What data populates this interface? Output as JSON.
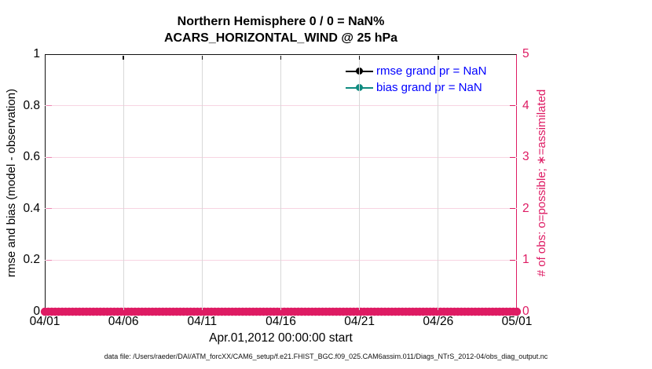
{
  "figure": {
    "background": "#ffffff",
    "footer_text": "data file: /Users/raeder/DAI/ATM_forcXX/CAM6_setup/f.e21.FHIST_BGC.f09_025.CAM6assim.011/Diags_NTrS_2012-04/obs_diag_output.nc"
  },
  "chart_data": {
    "type": "line",
    "title": "Northern Hemisphere 0 / 0 = NaN%",
    "subtitle": "ACARS_HORIZONTAL_WIND @ 25 hPa",
    "xlabel": "Apr.01,2012 00:00:00 start",
    "x_ticks": [
      "04/01",
      "04/06",
      "04/11",
      "04/16",
      "04/21",
      "04/26",
      "05/01"
    ],
    "left_axis": {
      "label": "rmse and bias (model - observation)",
      "ticks": [
        0,
        0.2,
        0.4,
        0.6,
        0.8,
        1
      ],
      "tick_labels": [
        "0",
        "0.2",
        "0.4",
        "0.6",
        "0.8",
        "1"
      ],
      "range": [
        0,
        1
      ],
      "color": "#000000"
    },
    "right_axis": {
      "label": "# of obs: o=possible; ∗=assimilated",
      "ticks": [
        0,
        1,
        2,
        3,
        4,
        5
      ],
      "tick_labels": [
        "0",
        "1",
        "2",
        "3",
        "4",
        "5"
      ],
      "range": [
        0,
        5
      ],
      "color": "#de1b63"
    },
    "series": [
      {
        "name": "rmse",
        "legend_label": "rmse grand pr = NaN",
        "color": "#000000",
        "grand_value": "NaN",
        "values": []
      },
      {
        "name": "bias",
        "legend_label": "bias grand pr = NaN",
        "color": "#0f8b80",
        "grand_value": "NaN",
        "values": []
      }
    ],
    "observation_counts": {
      "possible_marker": "o",
      "assimilated_marker": "∗",
      "plotted_value": 0,
      "marker_count": 137,
      "color": "#de1b63"
    },
    "grid": {
      "h_color": "#f7d4e2",
      "h_tick_color": "#ee86b2",
      "v_color": "#d8d8d8",
      "top_tick_color": "#111111"
    },
    "legend_text_color": "#0000ff",
    "legend_position": "upper-right-inside"
  }
}
